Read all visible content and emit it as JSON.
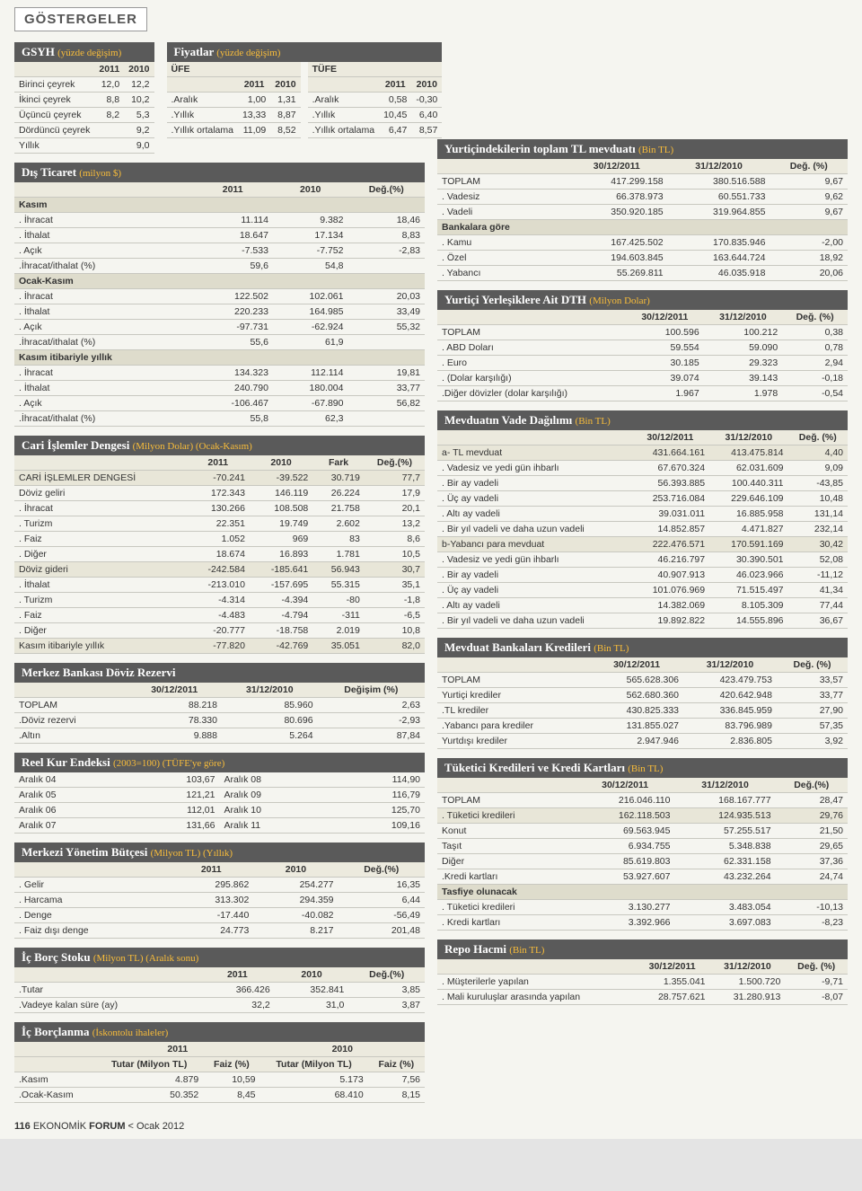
{
  "page": {
    "badge": "GÖSTERGELER",
    "footer_page": "116",
    "footer_pub": "EKONOMİK",
    "footer_pub_bold": "FORUM",
    "footer_date": "Ocak 2012"
  },
  "gsyh": {
    "title": "GSYH",
    "sub": "(yüzde değişim)",
    "cols": [
      "",
      "2011",
      "2010"
    ],
    "rows": [
      [
        "Birinci çeyrek",
        "12,0",
        "12,2"
      ],
      [
        "İkinci çeyrek",
        "8,8",
        "10,2"
      ],
      [
        "Üçüncü çeyrek",
        "8,2",
        "5,3"
      ],
      [
        "Dördüncü çeyrek",
        "",
        "9,2"
      ],
      [
        "Yıllık",
        "",
        "9,0"
      ]
    ]
  },
  "fiyatlar": {
    "title": "Fiyatlar",
    "sub": "(yüzde değişim)",
    "left_header": "ÜFE",
    "right_header": "TÜFE",
    "cols": [
      "",
      "2011",
      "2010"
    ],
    "left_rows": [
      [
        ".Aralık",
        "1,00",
        "1,31"
      ],
      [
        ".Yıllık",
        "13,33",
        "8,87"
      ],
      [
        ".Yıllık ortalama",
        "11,09",
        "8,52"
      ]
    ],
    "right_rows": [
      [
        ".Aralık",
        "0,58",
        "-0,30"
      ],
      [
        ".Yıllık",
        "10,45",
        "6,40"
      ],
      [
        ".Yıllık ortalama",
        "6,47",
        "8,57"
      ]
    ]
  },
  "dis_ticaret": {
    "title": "Dış Ticaret",
    "sub": "(milyon $)",
    "cols": [
      "",
      "2011",
      "2010",
      "Değ.(%)"
    ],
    "rows": [
      {
        "sec": true,
        "cells": [
          "Kasım",
          "",
          "",
          ""
        ]
      },
      {
        "cells": [
          ". İhracat",
          "11.114",
          "9.382",
          "18,46"
        ]
      },
      {
        "cells": [
          ". İthalat",
          "18.647",
          "17.134",
          "8,83"
        ]
      },
      {
        "cells": [
          ". Açık",
          "-7.533",
          "-7.752",
          "-2,83"
        ]
      },
      {
        "cells": [
          ".İhracat/ithalat (%)",
          "59,6",
          "54,8",
          ""
        ]
      },
      {
        "sec": true,
        "cells": [
          "Ocak-Kasım",
          "",
          "",
          ""
        ]
      },
      {
        "cells": [
          ". İhracat",
          "122.502",
          "102.061",
          "20,03"
        ]
      },
      {
        "cells": [
          ". İthalat",
          "220.233",
          "164.985",
          "33,49"
        ]
      },
      {
        "cells": [
          ". Açık",
          "-97.731",
          "-62.924",
          "55,32"
        ]
      },
      {
        "cells": [
          ".İhracat/ithalat (%)",
          "55,6",
          "61,9",
          ""
        ]
      },
      {
        "sec": true,
        "cells": [
          "Kasım itibariyle yıllık",
          "",
          "",
          ""
        ]
      },
      {
        "cells": [
          ". İhracat",
          "134.323",
          "112.114",
          "19,81"
        ]
      },
      {
        "cells": [
          ". İthalat",
          "240.790",
          "180.004",
          "33,77"
        ]
      },
      {
        "cells": [
          ". Açık",
          "-106.467",
          "-67.890",
          "56,82"
        ]
      },
      {
        "cells": [
          ".İhracat/ithalat (%)",
          "55,8",
          "62,3",
          ""
        ]
      }
    ]
  },
  "cari": {
    "title": "Cari İşlemler Dengesi",
    "sub": "(Milyon Dolar) (Ocak-Kasım)",
    "cols": [
      "",
      "2011",
      "2010",
      "Fark",
      "Değ.(%)"
    ],
    "rows": [
      {
        "band": true,
        "cells": [
          "CARİ İŞLEMLER DENGESİ",
          "-70.241",
          "-39.522",
          "30.719",
          "77,7"
        ]
      },
      {
        "cells": [
          "Döviz geliri",
          "172.343",
          "146.119",
          "26.224",
          "17,9"
        ]
      },
      {
        "cells": [
          ". İhracat",
          "130.266",
          "108.508",
          "21.758",
          "20,1"
        ]
      },
      {
        "cells": [
          ". Turizm",
          "22.351",
          "19.749",
          "2.602",
          "13,2"
        ]
      },
      {
        "cells": [
          ". Faiz",
          "1.052",
          "969",
          "83",
          "8,6"
        ]
      },
      {
        "cells": [
          ". Diğer",
          "18.674",
          "16.893",
          "1.781",
          "10,5"
        ]
      },
      {
        "band": true,
        "cells": [
          "Döviz gideri",
          "-242.584",
          "-185.641",
          "56.943",
          "30,7"
        ]
      },
      {
        "cells": [
          ". İthalat",
          "-213.010",
          "-157.695",
          "55.315",
          "35,1"
        ]
      },
      {
        "cells": [
          ". Turizm",
          "-4.314",
          "-4.394",
          "-80",
          "-1,8"
        ]
      },
      {
        "cells": [
          ". Faiz",
          "-4.483",
          "-4.794",
          "-311",
          "-6,5"
        ]
      },
      {
        "cells": [
          ". Diğer",
          "-20.777",
          "-18.758",
          "2.019",
          "10,8"
        ]
      },
      {
        "band": true,
        "cells": [
          "Kasım itibariyle yıllık",
          "-77.820",
          "-42.769",
          "35.051",
          "82,0"
        ]
      }
    ]
  },
  "merkez_rezerv": {
    "title": "Merkez Bankası Döviz Rezervi",
    "cols": [
      "",
      "30/12/2011",
      "31/12/2010",
      "Değişim (%)"
    ],
    "rows": [
      [
        "TOPLAM",
        "88.218",
        "85.960",
        "2,63"
      ],
      [
        ".Döviz rezervi",
        "78.330",
        "80.696",
        "-2,93"
      ],
      [
        ".Altın",
        "9.888",
        "5.264",
        "87,84"
      ]
    ]
  },
  "reel_kur": {
    "title": "Reel Kur Endeksi",
    "sub": "(2003=100) (TÜFE'ye göre)",
    "rows": [
      [
        "Aralık 04",
        "103,67",
        "Aralık 08",
        "114,90"
      ],
      [
        "Aralık 05",
        "121,21",
        "Aralık 09",
        "116,79"
      ],
      [
        "Aralık 06",
        "112,01",
        "Aralık 10",
        "125,70"
      ],
      [
        "Aralık 07",
        "131,66",
        "Aralık 11",
        "109,16"
      ]
    ]
  },
  "butce": {
    "title": "Merkezi Yönetim Bütçesi",
    "sub": "(Milyon TL) (Yıllık)",
    "cols": [
      "",
      "2011",
      "2010",
      "Değ.(%)"
    ],
    "rows": [
      [
        ". Gelir",
        "295.862",
        "254.277",
        "16,35"
      ],
      [
        ". Harcama",
        "313.302",
        "294.359",
        "6,44"
      ],
      [
        ". Denge",
        "-17.440",
        "-40.082",
        "-56,49"
      ],
      [
        ". Faiz dışı denge",
        "24.773",
        "8.217",
        "201,48"
      ]
    ]
  },
  "ic_borc_stoku": {
    "title": "İç Borç Stoku",
    "sub": "(Milyon TL) (Aralık sonu)",
    "cols": [
      "",
      "2011",
      "2010",
      "Değ.(%)"
    ],
    "rows": [
      [
        ".Tutar",
        "366.426",
        "352.841",
        "3,85"
      ],
      [
        ".Vadeye kalan süre (ay)",
        "32,2",
        "31,0",
        "3,87"
      ]
    ]
  },
  "ic_borclanma": {
    "title": "İç Borçlanma",
    "sub": "(İskontolu ihaleler)",
    "topcols": [
      "",
      "2011",
      "2010"
    ],
    "cols": [
      "",
      "Tutar (Milyon TL)",
      "Faiz (%)",
      "Tutar (Milyon TL)",
      "Faiz (%)"
    ],
    "rows": [
      [
        ".Kasım",
        "4.879",
        "10,59",
        "5.173",
        "7,56"
      ],
      [
        ".Ocak-Kasım",
        "50.352",
        "8,45",
        "68.410",
        "8,15"
      ]
    ]
  },
  "mevduat_toplam": {
    "title": "Yurtiçindekilerin toplam TL mevduatı",
    "sub": "(Bin TL)",
    "cols": [
      "",
      "30/12/2011",
      "31/12/2010",
      "Değ. (%)"
    ],
    "rows": [
      {
        "cells": [
          "TOPLAM",
          "417.299.158",
          "380.516.588",
          "9,67"
        ]
      },
      {
        "cells": [
          ". Vadesiz",
          "66.378.973",
          "60.551.733",
          "9,62"
        ]
      },
      {
        "cells": [
          ". Vadeli",
          "350.920.185",
          "319.964.855",
          "9,67"
        ]
      },
      {
        "sec": true,
        "cells": [
          "Bankalara göre",
          "",
          "",
          ""
        ]
      },
      {
        "cells": [
          ". Kamu",
          "167.425.502",
          "170.835.946",
          "-2,00"
        ]
      },
      {
        "cells": [
          ". Özel",
          "194.603.845",
          "163.644.724",
          "18,92"
        ]
      },
      {
        "cells": [
          ". Yabancı",
          "55.269.811",
          "46.035.918",
          "20,06"
        ]
      }
    ]
  },
  "dth": {
    "title": "Yurtiçi Yerleşiklere Ait DTH",
    "sub": "(Milyon Dolar)",
    "cols": [
      "",
      "30/12/2011",
      "31/12/2010",
      "Değ. (%)"
    ],
    "rows": [
      [
        "TOPLAM",
        "100.596",
        "100.212",
        "0,38"
      ],
      [
        ". ABD Doları",
        "59.554",
        "59.090",
        "0,78"
      ],
      [
        ". Euro",
        "30.185",
        "29.323",
        "2,94"
      ],
      [
        ". (Dolar karşılığı)",
        "39.074",
        "39.143",
        "-0,18"
      ],
      [
        ".Diğer dövizler (dolar karşılığı)",
        "1.967",
        "1.978",
        "-0,54"
      ]
    ]
  },
  "vade": {
    "title": "Mevduatın Vade Dağılımı",
    "sub": "(Bin TL)",
    "cols": [
      "",
      "30/12/2011",
      "31/12/2010",
      "Değ. (%)"
    ],
    "rows": [
      {
        "band": true,
        "cells": [
          "a- TL mevduat",
          "431.664.161",
          "413.475.814",
          "4,40"
        ]
      },
      {
        "cells": [
          ". Vadesiz ve yedi gün ihbarlı",
          "67.670.324",
          "62.031.609",
          "9,09"
        ]
      },
      {
        "cells": [
          ". Bir ay vadeli",
          "56.393.885",
          "100.440.311",
          "-43,85"
        ]
      },
      {
        "cells": [
          ". Üç ay vadeli",
          "253.716.084",
          "229.646.109",
          "10,48"
        ]
      },
      {
        "cells": [
          ". Altı ay vadeli",
          "39.031.011",
          "16.885.958",
          "131,14"
        ]
      },
      {
        "cells": [
          ". Bir yıl vadeli ve daha uzun vadeli",
          "14.852.857",
          "4.471.827",
          "232,14"
        ]
      },
      {
        "band": true,
        "cells": [
          "b-Yabancı para mevduat",
          "222.476.571",
          "170.591.169",
          "30,42"
        ]
      },
      {
        "cells": [
          ". Vadesiz ve yedi gün ihbarlı",
          "46.216.797",
          "30.390.501",
          "52,08"
        ]
      },
      {
        "cells": [
          ". Bir ay vadeli",
          "40.907.913",
          "46.023.966",
          "-11,12"
        ]
      },
      {
        "cells": [
          ". Üç ay vadeli",
          "101.076.969",
          "71.515.497",
          "41,34"
        ]
      },
      {
        "cells": [
          ". Altı ay vadeli",
          "14.382.069",
          "8.105.309",
          "77,44"
        ]
      },
      {
        "cells": [
          ". Bir yıl vadeli ve daha uzun vadeli",
          "19.892.822",
          "14.555.896",
          "36,67"
        ]
      }
    ]
  },
  "kredi": {
    "title": "Mevduat Bankaları Kredileri",
    "sub": "(Bin TL)",
    "cols": [
      "",
      "30/12/2011",
      "31/12/2010",
      "Değ. (%)"
    ],
    "rows": [
      [
        "TOPLAM",
        "565.628.306",
        "423.479.753",
        "33,57"
      ],
      [
        "Yurtiçi krediler",
        "562.680.360",
        "420.642.948",
        "33,77"
      ],
      [
        ".TL krediler",
        "430.825.333",
        "336.845.959",
        "27,90"
      ],
      [
        ".Yabancı para krediler",
        "131.855.027",
        "83.796.989",
        "57,35"
      ],
      [
        "Yurtdışı krediler",
        "2.947.946",
        "2.836.805",
        "3,92"
      ]
    ]
  },
  "tuketici": {
    "title": "Tüketici Kredileri ve Kredi Kartları",
    "sub": "(Bin TL)",
    "cols": [
      "",
      "30/12/2011",
      "31/12/2010",
      "Değ.(%)"
    ],
    "rows": [
      {
        "cells": [
          "TOPLAM",
          "216.046.110",
          "168.167.777",
          "28,47"
        ]
      },
      {
        "band": true,
        "cells": [
          ". Tüketici kredileri",
          "162.118.503",
          "124.935.513",
          "29,76"
        ]
      },
      {
        "cells": [
          "   Konut",
          "69.563.945",
          "57.255.517",
          "21,50"
        ]
      },
      {
        "cells": [
          "   Taşıt",
          "6.934.755",
          "5.348.838",
          "29,65"
        ]
      },
      {
        "cells": [
          "   Diğer",
          "85.619.803",
          "62.331.158",
          "37,36"
        ]
      },
      {
        "cells": [
          ".Kredi kartları",
          "53.927.607",
          "43.232.264",
          "24,74"
        ]
      },
      {
        "sec": true,
        "cells": [
          "Tasfiye olunacak",
          "",
          "",
          ""
        ]
      },
      {
        "cells": [
          ". Tüketici kredileri",
          "3.130.277",
          "3.483.054",
          "-10,13"
        ]
      },
      {
        "cells": [
          ". Kredi kartları",
          "3.392.966",
          "3.697.083",
          "-8,23"
        ]
      }
    ]
  },
  "repo": {
    "title": "Repo Hacmi",
    "sub": "(Bin TL)",
    "cols": [
      "",
      "30/12/2011",
      "31/12/2010",
      "Değ. (%)"
    ],
    "rows": [
      [
        ". Müşterilerle yapılan",
        "1.355.041",
        "1.500.720",
        "-9,71"
      ],
      [
        ". Mali kuruluşlar arasında yapılan",
        "28.757.621",
        "31.280.913",
        "-8,07"
      ]
    ]
  }
}
